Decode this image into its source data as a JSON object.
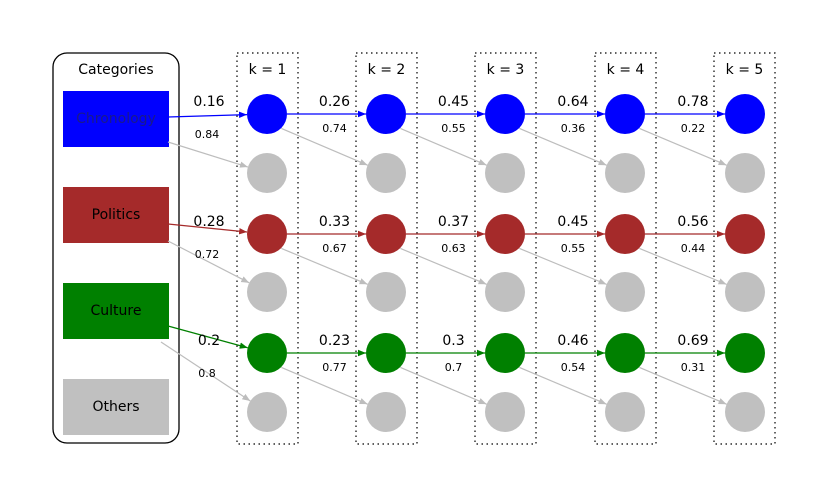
{
  "legend": {
    "title": "Categories",
    "items": [
      {
        "label": "Chronology",
        "color": "#0000ff",
        "text_color": "#1a1a8a"
      },
      {
        "label": "Politics",
        "color": "#a52a2a",
        "text_color": "#000000"
      },
      {
        "label": "Culture",
        "color": "#008000",
        "text_color": "#000000"
      },
      {
        "label": "Others",
        "color": "#c0c0c0",
        "text_color": "#000000"
      }
    ]
  },
  "columns": [
    {
      "label": "k = 1"
    },
    {
      "label": "k = 2"
    },
    {
      "label": "k = 3"
    },
    {
      "label": "k = 4"
    },
    {
      "label": "k = 5"
    }
  ],
  "colors": {
    "gray": "#c0c0c0",
    "gray_edge": "#bdbdbd"
  },
  "flows": [
    {
      "category": "Chronology",
      "color": "#0000ff",
      "main": [
        "0.16",
        "0.26",
        "0.45",
        "0.64",
        "0.78"
      ],
      "other": [
        "0.84",
        "0.74",
        "0.55",
        "0.36",
        "0.22"
      ]
    },
    {
      "category": "Politics",
      "color": "#a52a2a",
      "main": [
        "0.28",
        "0.33",
        "0.37",
        "0.45",
        "0.56"
      ],
      "other": [
        "0.72",
        "0.67",
        "0.63",
        "0.55",
        "0.44"
      ]
    },
    {
      "category": "Culture",
      "color": "#008000",
      "main": [
        "0.2",
        "0.23",
        "0.3",
        "0.46",
        "0.69"
      ],
      "other": [
        "0.8",
        "0.77",
        "0.7",
        "0.54",
        "0.31"
      ]
    }
  ]
}
